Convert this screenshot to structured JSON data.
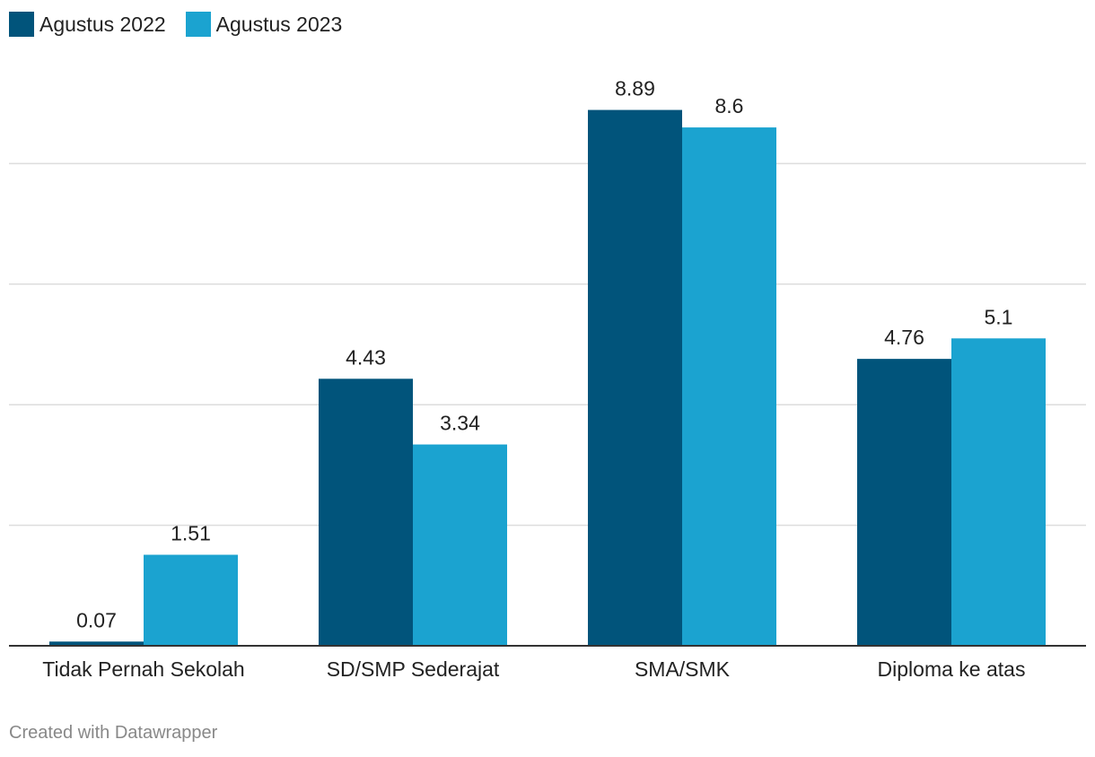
{
  "legend": [
    {
      "label": "Agustus 2022",
      "color": "#01547B"
    },
    {
      "label": "Agustus 2023",
      "color": "#1BA3D0"
    }
  ],
  "footer": "Created with Datawrapper",
  "colors": {
    "gridline": "#DDDDDD",
    "baseline": "#333333",
    "label_text": "#222222"
  },
  "chart_data": {
    "type": "bar",
    "orientation": "vertical",
    "title": "",
    "xlabel": "",
    "ylabel": "",
    "ylim": [
      0,
      10
    ],
    "y_gridlines": [
      2,
      4,
      6,
      8
    ],
    "grid": true,
    "legend_position": "top-left",
    "categories": [
      "Tidak Pernah Sekolah",
      "SD/SMP Sederajat",
      "SMA/SMK",
      "Diploma ke atas"
    ],
    "series": [
      {
        "name": "Agustus 2022",
        "color": "#01547B",
        "values": [
          0.07,
          4.43,
          8.89,
          4.76
        ],
        "labels": [
          "0.07",
          "4.43",
          "8.89",
          "4.76"
        ]
      },
      {
        "name": "Agustus 2023",
        "color": "#1BA3D0",
        "values": [
          1.51,
          3.34,
          8.6,
          5.1
        ],
        "labels": [
          "1.51",
          "3.34",
          "8.6",
          "5.1"
        ]
      }
    ]
  }
}
